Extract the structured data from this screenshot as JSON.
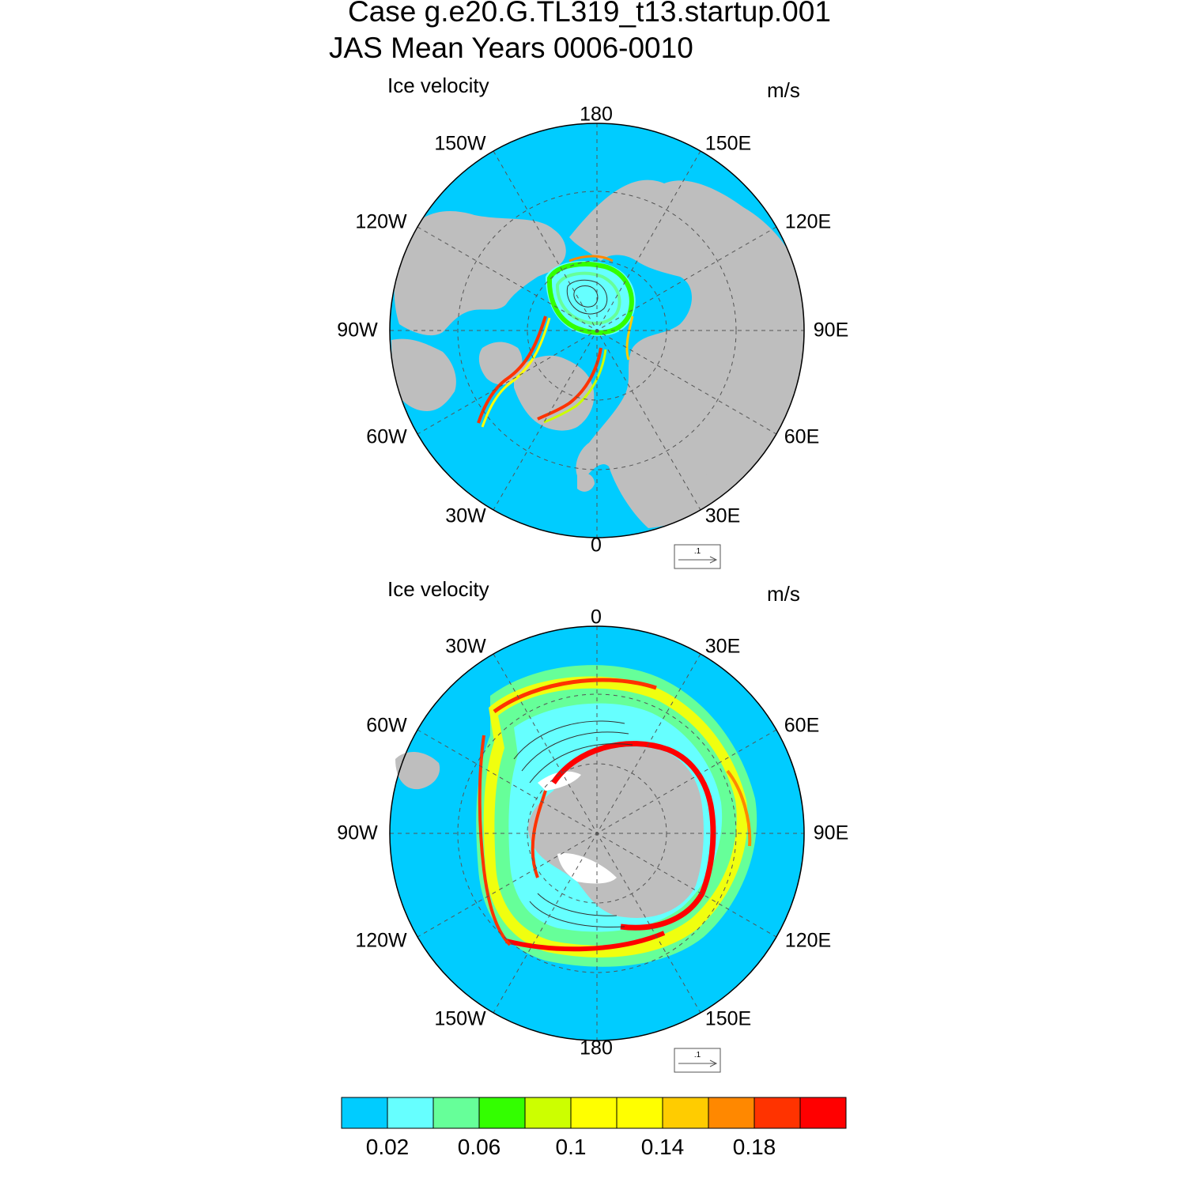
{
  "header": {
    "line1": "Case g.e20.G.TL319_t13.startup.001",
    "line2": "JAS Mean   Years 0006-0010"
  },
  "panels": [
    {
      "hemisphere": "north",
      "title": "Ice velocity",
      "units": "m/s",
      "lon_labels": [
        "180",
        "150E",
        "120E",
        "90E",
        "60E",
        "30E",
        "0",
        "30W",
        "60W",
        "90W",
        "120W",
        "150W"
      ],
      "reference_vector": ".1"
    },
    {
      "hemisphere": "south",
      "title": "Ice velocity",
      "units": "m/s",
      "lon_labels": [
        "0",
        "30E",
        "60E",
        "90E",
        "120E",
        "150E",
        "180",
        "150W",
        "120W",
        "90W",
        "60W",
        "30W"
      ],
      "reference_vector": ".1"
    }
  ],
  "colorbar": {
    "colors": [
      "#00ccff",
      "#66ffff",
      "#66ff99",
      "#33ff00",
      "#ccff00",
      "#ffff00",
      "#ffff00",
      "#ffcc00",
      "#ff8800",
      "#ff3300",
      "#ff0000"
    ],
    "tick_labels": [
      "0.02",
      "0.06",
      "0.1",
      "0.14",
      "0.18"
    ]
  },
  "colors": {
    "ocean": "#00ccff",
    "land": "#bebebe",
    "gridline": "#555555"
  }
}
